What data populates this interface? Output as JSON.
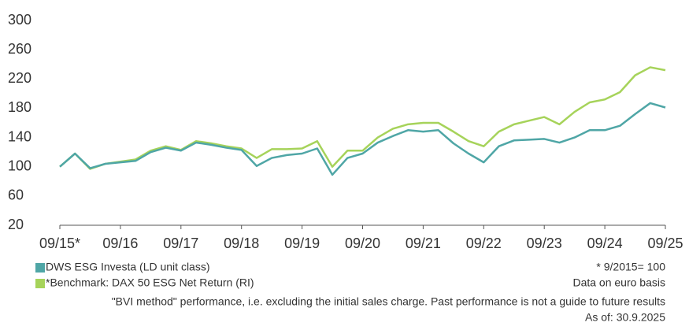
{
  "chart_data": {
    "type": "line",
    "x": [
      0,
      3,
      6,
      9,
      12,
      15,
      18,
      21,
      24,
      27,
      30,
      33,
      36,
      39,
      42,
      45,
      48,
      51,
      54,
      57,
      60,
      63,
      66,
      69,
      72,
      75,
      78,
      81,
      84,
      87,
      90,
      93,
      96,
      99,
      102,
      105,
      108,
      111,
      114,
      117,
      120
    ],
    "series": [
      {
        "name": "DWS ESG Investa (LD unit class)",
        "color": "#4fa6a6",
        "values": [
          100,
          118,
          98,
          104,
          106,
          108,
          120,
          126,
          122,
          133,
          130,
          126,
          123,
          101,
          112,
          116,
          118,
          125,
          89,
          112,
          118,
          133,
          142,
          150,
          148,
          150,
          132,
          118,
          106,
          128,
          136,
          137,
          138,
          133,
          140,
          150,
          150,
          156,
          172,
          187,
          181
        ]
      },
      {
        "name": "*Benchmark: DAX 50 ESG Net Return (RI)",
        "color": "#a6d35a",
        "values": [
          100,
          118,
          97,
          104,
          107,
          110,
          122,
          128,
          123,
          135,
          132,
          128,
          125,
          112,
          124,
          124,
          125,
          135,
          100,
          122,
          122,
          140,
          152,
          158,
          160,
          160,
          148,
          135,
          128,
          148,
          158,
          163,
          168,
          158,
          175,
          188,
          192,
          202,
          225,
          236,
          232
        ]
      }
    ],
    "xlim": [
      0,
      120
    ],
    "xticks": [
      {
        "value": 0,
        "label": "09/15*"
      },
      {
        "value": 12,
        "label": "09/16"
      },
      {
        "value": 24,
        "label": "09/17"
      },
      {
        "value": 36,
        "label": "09/18"
      },
      {
        "value": 48,
        "label": "09/19"
      },
      {
        "value": 60,
        "label": "09/20"
      },
      {
        "value": 72,
        "label": "09/21"
      },
      {
        "value": 84,
        "label": "09/22"
      },
      {
        "value": 96,
        "label": "09/23"
      },
      {
        "value": 108,
        "label": "09/24"
      },
      {
        "value": 120,
        "label": "09/25"
      }
    ],
    "ylim": [
      20,
      300
    ],
    "yticks": [
      20,
      60,
      100,
      140,
      180,
      220,
      260,
      300
    ],
    "notes": [
      "* 9/2015= 100",
      "Data on euro basis"
    ],
    "footer": "\"BVI method\" performance, i.e. excluding the initial sales charge. Past performance is not a guide to future results",
    "as_of": "As of: 30.9.2025"
  }
}
